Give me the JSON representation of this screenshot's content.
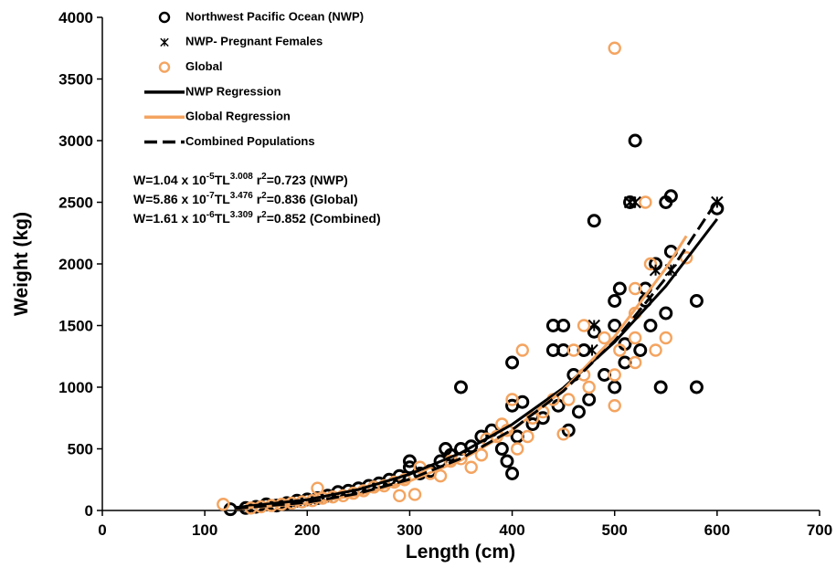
{
  "chart_data": {
    "type": "scatter",
    "xlabel": "Length (cm)",
    "ylabel": "Weight (kg)",
    "xlim": [
      0,
      700
    ],
    "ylim": [
      0,
      4000
    ],
    "xticks": [
      0,
      100,
      200,
      300,
      400,
      500,
      600,
      700
    ],
    "yticks": [
      0,
      500,
      1000,
      1500,
      2000,
      2500,
      3000,
      3500,
      4000
    ],
    "legend": "upper left",
    "series": [
      {
        "name": "Northwest Pacific Ocean (NWP)",
        "color": "#000000",
        "marker": "circle",
        "x": [
          125,
          140,
          150,
          160,
          170,
          180,
          190,
          200,
          210,
          220,
          230,
          240,
          250,
          260,
          270,
          280,
          290,
          300,
          300,
          310,
          320,
          330,
          335,
          340,
          350,
          350,
          360,
          370,
          380,
          390,
          395,
          400,
          400,
          400,
          405,
          410,
          420,
          430,
          440,
          440,
          445,
          450,
          450,
          455,
          460,
          465,
          470,
          475,
          480,
          480,
          490,
          500,
          500,
          500,
          505,
          510,
          510,
          515,
          520,
          525,
          530,
          530,
          535,
          540,
          545,
          550,
          550,
          555,
          555,
          580,
          580,
          600
        ],
        "values": [
          10,
          20,
          30,
          50,
          40,
          60,
          80,
          90,
          100,
          120,
          150,
          160,
          180,
          200,
          220,
          250,
          280,
          400,
          350,
          300,
          320,
          400,
          500,
          450,
          1000,
          500,
          520,
          600,
          650,
          500,
          400,
          300,
          1200,
          850,
          600,
          880,
          700,
          750,
          1300,
          1500,
          850,
          1500,
          1300,
          650,
          1100,
          800,
          1300,
          900,
          2350,
          1450,
          1100,
          1700,
          1500,
          1000,
          1800,
          1200,
          1350,
          2500,
          3000,
          1300,
          1700,
          1800,
          1500,
          2000,
          1000,
          1600,
          2500,
          2550,
          2100,
          1700,
          1000,
          2450
        ]
      },
      {
        "name": "NWP- Pregnant Females",
        "color": "#000000",
        "marker": "star",
        "x": [
          515,
          520,
          480,
          478,
          540,
          555,
          600
        ],
        "values": [
          2500,
          2500,
          1500,
          1300,
          1950,
          1950,
          2500
        ]
      },
      {
        "name": "Global",
        "color": "#f4a460",
        "marker": "circle",
        "x": [
          118,
          145,
          155,
          165,
          175,
          185,
          195,
          205,
          210,
          215,
          225,
          235,
          245,
          255,
          265,
          275,
          285,
          290,
          295,
          305,
          310,
          320,
          330,
          340,
          350,
          360,
          370,
          375,
          385,
          390,
          395,
          400,
          405,
          410,
          415,
          420,
          430,
          440,
          450,
          455,
          460,
          470,
          470,
          475,
          490,
          500,
          500,
          500,
          505,
          520,
          520,
          520,
          520,
          530,
          535,
          540,
          550,
          570
        ],
        "values": [
          50,
          20,
          30,
          40,
          50,
          60,
          70,
          80,
          180,
          100,
          110,
          120,
          140,
          160,
          190,
          200,
          230,
          120,
          250,
          130,
          350,
          300,
          280,
          400,
          420,
          350,
          450,
          580,
          600,
          700,
          650,
          900,
          500,
          1300,
          600,
          750,
          800,
          900,
          620,
          900,
          1300,
          1500,
          1100,
          1000,
          1400,
          3750,
          850,
          1100,
          1300,
          1800,
          1600,
          1400,
          1200,
          2500,
          2000,
          1300,
          1400,
          2050
        ]
      },
      {
        "name": "NWP Regression",
        "color": "#000000",
        "marker": "line",
        "x": [
          130,
          200,
          250,
          300,
          350,
          400,
          450,
          500,
          550,
          600
        ],
        "values": [
          24,
          87,
          170,
          294,
          467,
          698,
          995,
          1366,
          1820,
          2364
        ]
      },
      {
        "name": "Global Regression",
        "color": "#f4a460",
        "marker": "line",
        "x": [
          130,
          200,
          250,
          300,
          350,
          400,
          450,
          500,
          550,
          570
        ],
        "values": [
          13,
          58,
          127,
          239,
          408,
          649,
          978,
          1412,
          1965,
          2226
        ]
      },
      {
        "name": "Combined Populations",
        "color": "#000000",
        "marker": "dashed",
        "x": [
          130,
          200,
          250,
          300,
          350,
          400,
          450,
          500,
          550,
          600
        ],
        "values": [
          16,
          66,
          138,
          253,
          422,
          655,
          969,
          1375,
          1885,
          2513
        ]
      }
    ],
    "annotations": [
      [
        "W=1.04 x 10",
        "-5",
        "TL",
        "3.008",
        " r",
        "2",
        "=0.723 (NWP)"
      ],
      [
        "W=5.86 x 10",
        "-7",
        "TL",
        "3.476",
        " r",
        "2",
        "=0.836 (Global)"
      ],
      [
        "W=1.61 x 10",
        "-6",
        "TL",
        "3.309",
        " r",
        "2",
        "=0.852 (Combined)"
      ]
    ]
  }
}
